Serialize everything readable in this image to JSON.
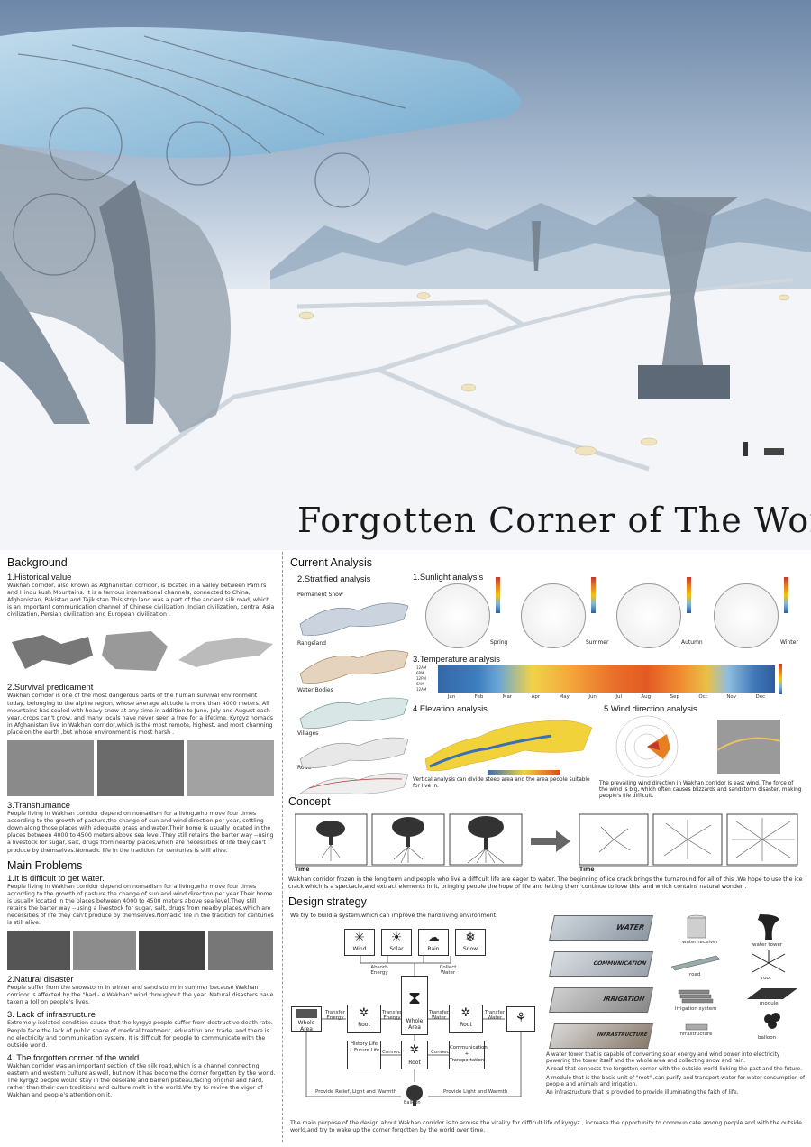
{
  "title": "Forgotten Corner of The World",
  "background": {
    "heading": "Background",
    "historical": {
      "heading": "1.Historical value",
      "text": "Wakhan corridor, also known as Afghanistan corridor, is located in a valley between Pamirs and Hindu kush Mountains. It is a famous international channels, connected to China, Afghanistan, Pakistan and Tajikistan.This strip land was a part of the ancient silk road, which is an important communication channel of Chinese civilization ,Indian civilization, central Asia civilization, Persian civilization and European civilization ."
    },
    "survival": {
      "heading": "2.Survival predicament",
      "text": "Wakhan corridor is one of the most dangerous parts of the human survival environment today, belonging to the alpine region, whose average altitude is more than 4000 meters. All mountains has sealed with heavy snow at any time in addition to June, July and August each year, crops can't grow, and many locals have never seen a tree for a lifetime. Kyrgyz nomads in Afghanistan live in Wakhan corridor,which is the most remote, highest, and most charming place on the earth ,but whose environment is most harsh ."
    },
    "transhumance": {
      "heading": "3.Transhumance",
      "text": "People living in Wakhan corridor depend on nomadism for a living,who move four times according to the growth of pasture,the change of sun and wind direction per year, settling down along those places with adequate grass and water.Their home is usually located in the places between 4000 to 4500 meters above sea level.They still retains the barter way --using a livestock for sugar, salt, drugs from nearby places,which are necessities of life they can't produce by themselves.Nomadic life in the tradition for centuries is still alive."
    }
  },
  "problems": {
    "heading": "Main Problems",
    "water": {
      "heading": "1.It is difficult to get water.",
      "text": "People living in Wakhan corridor depend on nomadism for a living,who move four times according to the growth of pasture,the change of sun and wind direction per year.Their home is usually located in the places between 4000 to 4500 meters above sea level.They still retains the barter way --using a livestock for sugar, salt, drugs from nearby places,which are necessities of life they can't produce by themselves.Nomadic life in the tradition for centuries is still alive."
    },
    "disaster": {
      "heading": "2.Natural disaster",
      "text": "People suffer from the snowstorm in winter and sand storm in summer because Wakhan corridor is affected by the \"bad - e Wakhan\" wind throughout the year. Natural disasters have taken a toll on people's lives."
    },
    "infrastructure": {
      "heading": "3. Lack of infrastructure",
      "text": "Extremely isolated condition cause that the kyrgyz people suffer from destructive death rate. People face the lack of public space of medical treatment, education and trade, and there is no electricity and communication system. It is difficult for people to communicate with the outside world."
    },
    "forgotten": {
      "heading": "4. The forgotten corner of the world",
      "text": "Wakhan corridor was an important section of the silk road,which is a channel connecting eastern and western culture as well, but now it has become the corner forgotten by the world. The kyrgyz people would stay in the desolate and barren plateau,facing original and hard, rather than their own traditions and culture melt in the world.We try to revive the vigor of Wakhan and people's attention on it."
    }
  },
  "analysis": {
    "heading": "Current Analysis",
    "stratified": {
      "heading": "2.Stratified analysis",
      "layers": [
        "Permanent Snow",
        "Rangeland",
        "Water Bodies",
        "Villages",
        "Road"
      ]
    },
    "sunlight": {
      "heading": "1.Sunlight analysis",
      "seasons": [
        "Spring",
        "Summer",
        "Autumn",
        "Winter"
      ]
    },
    "temperature": {
      "heading": "3.Temperature analysis",
      "months": [
        "Jan",
        "Feb",
        "Mar",
        "Apr",
        "May",
        "Jun",
        "Jul",
        "Aug",
        "Sep",
        "Oct",
        "Nov",
        "Dec"
      ],
      "rows": [
        "12AM",
        "6PM",
        "12PM",
        "6AM",
        "12AM"
      ]
    },
    "elevation": {
      "heading": "4.Elevation analysis",
      "caption": "Vertical analysis can divide steep area and the area people suitable for live in."
    },
    "wind": {
      "heading": "5.Wind direction analysis",
      "caption": "The prevailing wind direction in Wakhan corridor is east wind. The force of the wind is big, which often causes blizzards and sandstorm disaster, making people's life difficult."
    }
  },
  "concept": {
    "heading": "Concept",
    "time_label": "Time",
    "text": "Wakhan corridor frozen in the long term and people who live a difficult life are eager to water. The beginning of ice crack brings the turnaround for all of this .We hope to use the ice crack which is a spectacle,and extract elements in it, bringing people the hope of life and letting them continue to love this land which contains natural wonder ."
  },
  "strategy": {
    "heading": "Design strategy",
    "intro": "We try to build a system,which can improve the hard living environment.",
    "inputs": [
      "Wind",
      "Solar",
      "Rain",
      "Snow"
    ],
    "absorb": "Absorb Energy",
    "collect": "Collect Water",
    "nodes": {
      "whole_area": "Whole Area",
      "root_left": "Root",
      "whole_center": "Whole Area",
      "root_right": "Root",
      "history": "History Life ↓ Future Life",
      "root_bottom": "Root",
      "communication": "Communication + Transportation",
      "balloon": "Balloon"
    },
    "flows": {
      "transfer_energy_1": "Transfer Energy",
      "transfer_energy_2": "Transfer Energy",
      "transfer_water_1": "Transfer Water",
      "transfer_water_2": "Transfer Water",
      "connect_1": "Connect",
      "connect_2": "Connect",
      "provide_left": "Provide Relief, Light and Warmth",
      "provide_right": "Provide Light and Warmth"
    },
    "layers": [
      "WATER",
      "COMMUNICATION",
      "IRRIGATION",
      "INFRASTRUCTURE"
    ],
    "components": [
      "water receiver",
      "water tower",
      "road",
      "root",
      "irrigation system",
      "module",
      "infrastructure",
      "balloon"
    ],
    "notes": [
      "A water tower that is capable of converting solar energy and wind power into electricity powering the tower itself and the whole area and collecting snow and rain.",
      "A road that connects the forgotten corner with the outside world linking the past and the future.",
      "A module that is the basic unit of \"root\" ,can purify and transport water for water consumption of people and animals and irrigation.",
      "An infrastructure that is provided to provide illuminating the faith of life."
    ],
    "conclusion": "The main purpose of the design about Wakhan corridor is to arouse the vitality for  difficult life of kyrgyz , increase the opportunity to communicate among people and with the outside world,and try to wake up the corner forgotten by the world over time."
  }
}
